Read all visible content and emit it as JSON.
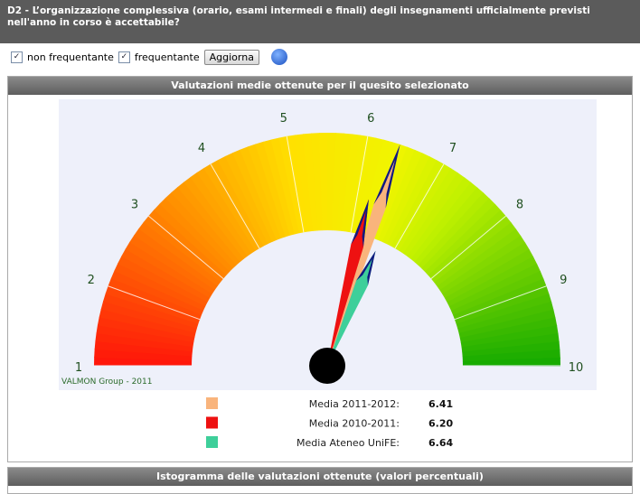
{
  "header": {
    "title": "D2 - L’organizzazione complessiva (orario, esami intermedi e finali) degli insegnamenti ufficialmente previsti nell'anno in corso è accettabile?"
  },
  "controls": {
    "checkboxes": [
      "non frequentante",
      "frequentante"
    ],
    "button": "Aggiorna"
  },
  "panel": {
    "title": "Valutazioni medie ottenute per il quesito selezionato"
  },
  "gauge": {
    "ticks": [
      1,
      2,
      3,
      4,
      5,
      6,
      7,
      8,
      9,
      10
    ],
    "credit": "VALMON Group - 2011",
    "needles": [
      {
        "name": "Media 2011-2012:",
        "color": "#f9b47c",
        "value": 6.41
      },
      {
        "name": "Media 2010-2011:",
        "color": "#ee1111",
        "value": 6.2,
        "value_label": "6.20"
      },
      {
        "name": "Media Ateneo UniFE:",
        "color": "#3ecf9a",
        "value": 6.64
      }
    ]
  },
  "histogram_panel": {
    "title": "Istogramma delle valutazioni ottenute (valori percentuali)"
  }
}
